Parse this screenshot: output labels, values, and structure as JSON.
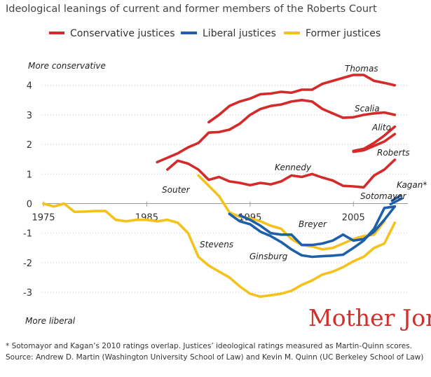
{
  "chart_data": {
    "type": "line",
    "title": "Ideological leanings of current and former members of the Roberts Court",
    "ylabel_top": "More conservative",
    "ylabel_bottom": "More liberal",
    "xlim": [
      1975,
      2010
    ],
    "ylim": [
      -3.4,
      4.6
    ],
    "y_ticks": [
      4,
      3,
      2,
      1,
      0,
      -1,
      -2,
      -3
    ],
    "y_tick_labels": [
      "4",
      "3",
      "2",
      "1",
      "0",
      "-1",
      "-2",
      "-3"
    ],
    "x_ticks": [
      1975,
      1985,
      1995,
      2005
    ],
    "x_tick_labels": [
      "1975",
      "1985",
      "1995",
      "2005"
    ],
    "grid": true,
    "legend": {
      "placement": "top",
      "entries": [
        {
          "label": "Conservative justices",
          "color": "#d42a2a"
        },
        {
          "label": "Liberal justices",
          "color": "#1d5fa8"
        },
        {
          "label": "Former justices",
          "color": "#f5c21b"
        }
      ]
    },
    "series": [
      {
        "name": "Thomas",
        "group": "Conservative justices",
        "color": "#d42a2a",
        "x": [
          1991,
          1992,
          1993,
          1994,
          1995,
          1996,
          1997,
          1998,
          1999,
          2000,
          2001,
          2002,
          2003,
          2004,
          2005,
          2006,
          2007,
          2008,
          2009
        ],
        "y": [
          2.75,
          3.0,
          3.3,
          3.45,
          3.55,
          3.7,
          3.72,
          3.78,
          3.75,
          3.85,
          3.85,
          4.05,
          4.15,
          4.25,
          4.35,
          4.35,
          4.15,
          4.08,
          4.0
        ]
      },
      {
        "name": "Scalia",
        "group": "Conservative justices",
        "color": "#d42a2a",
        "x": [
          1986,
          1987,
          1988,
          1989,
          1990,
          1991,
          1992,
          1993,
          1994,
          1995,
          1996,
          1997,
          1998,
          1999,
          2000,
          2001,
          2002,
          2003,
          2004,
          2005,
          2006,
          2007,
          2008,
          2009
        ],
        "y": [
          1.4,
          1.55,
          1.7,
          1.9,
          2.05,
          2.4,
          2.42,
          2.5,
          2.7,
          3.0,
          3.2,
          3.3,
          3.35,
          3.45,
          3.5,
          3.45,
          3.2,
          3.05,
          2.9,
          2.92,
          3.0,
          3.05,
          3.08,
          3.0
        ]
      },
      {
        "name": "Alito",
        "group": "Conservative justices",
        "color": "#d42a2a",
        "x": [
          2005,
          2006,
          2007,
          2008,
          2009
        ],
        "y": [
          1.78,
          1.85,
          2.05,
          2.3,
          2.6
        ]
      },
      {
        "name": "Roberts",
        "group": "Conservative justices",
        "color": "#d42a2a",
        "x": [
          2005,
          2006,
          2007,
          2008,
          2009
        ],
        "y": [
          1.75,
          1.8,
          1.95,
          2.1,
          2.35
        ]
      },
      {
        "name": "Kennedy",
        "group": "Conservative justices",
        "color": "#d42a2a",
        "x": [
          1987,
          1988,
          1989,
          1990,
          1991,
          1992,
          1993,
          1994,
          1995,
          1996,
          1997,
          1998,
          1999,
          2000,
          2001,
          2002,
          2003,
          2004,
          2005,
          2006,
          2007,
          2008,
          2009
        ],
        "y": [
          1.15,
          1.45,
          1.35,
          1.15,
          0.8,
          0.9,
          0.75,
          0.7,
          0.62,
          0.7,
          0.65,
          0.75,
          0.95,
          0.9,
          1.0,
          0.88,
          0.78,
          0.6,
          0.58,
          0.55,
          0.95,
          1.15,
          1.48
        ]
      },
      {
        "name": "Breyer",
        "group": "Liberal justices",
        "color": "#1d5fa8",
        "x": [
          1994,
          1995,
          1996,
          1997,
          1998,
          1999,
          2000,
          2001,
          2002,
          2003,
          2004,
          2005,
          2006,
          2007,
          2008,
          2009
        ],
        "y": [
          -0.4,
          -0.55,
          -0.75,
          -1.0,
          -1.05,
          -1.05,
          -1.4,
          -1.4,
          -1.35,
          -1.25,
          -1.05,
          -1.25,
          -1.2,
          -0.95,
          -0.55,
          -0.1
        ]
      },
      {
        "name": "Ginsburg",
        "group": "Liberal justices",
        "color": "#1d5fa8",
        "x": [
          1993,
          1994,
          1995,
          1996,
          1997,
          1998,
          1999,
          2000,
          2001,
          2002,
          2003,
          2004,
          2005,
          2006,
          2007,
          2008,
          2009
        ],
        "y": [
          -0.35,
          -0.6,
          -0.7,
          -0.95,
          -1.1,
          -1.3,
          -1.55,
          -1.75,
          -1.8,
          -1.78,
          -1.76,
          -1.73,
          -1.5,
          -1.25,
          -0.85,
          -0.15,
          -0.1
        ]
      },
      {
        "name": "Sotomayor",
        "group": "Liberal justices",
        "color": "#1d5fa8",
        "x": [
          2009
        ],
        "y": [
          0.05
        ]
      },
      {
        "name": "Kagan",
        "group": "Liberal justices",
        "color": "#1d5fa8",
        "x": [
          2009
        ],
        "y": [
          0.05
        ]
      },
      {
        "name": "Souter",
        "group": "Former justices",
        "color": "#f5c21b",
        "x": [
          1990,
          1991,
          1992,
          1993,
          1994,
          1995,
          1996,
          1997,
          1998,
          1999,
          2000,
          2001,
          2002,
          2003,
          2004,
          2005,
          2006,
          2007,
          2008
        ],
        "y": [
          0.95,
          0.6,
          0.25,
          -0.3,
          -0.45,
          -0.5,
          -0.6,
          -0.75,
          -0.85,
          -1.2,
          -1.4,
          -1.45,
          -1.55,
          -1.5,
          -1.35,
          -1.2,
          -1.1,
          -1.05,
          -0.6
        ]
      },
      {
        "name": "Stevens",
        "group": "Former justices",
        "color": "#f5c21b",
        "x": [
          1975,
          1976,
          1977,
          1978,
          1979,
          1980,
          1981,
          1982,
          1983,
          1984,
          1985,
          1986,
          1987,
          1988,
          1989,
          1990,
          1991,
          1992,
          1993,
          1994,
          1995,
          1996,
          1997,
          1998,
          1999,
          2000,
          2001,
          2002,
          2003,
          2004,
          2005,
          2006,
          2007,
          2008,
          2009
        ],
        "y": [
          0.0,
          -0.1,
          0.0,
          -0.28,
          -0.27,
          -0.25,
          -0.25,
          -0.55,
          -0.6,
          -0.55,
          -0.55,
          -0.6,
          -0.55,
          -0.65,
          -1.0,
          -1.8,
          -2.1,
          -2.3,
          -2.5,
          -2.8,
          -3.05,
          -3.15,
          -3.1,
          -3.05,
          -2.95,
          -2.75,
          -2.6,
          -2.4,
          -2.3,
          -2.15,
          -1.95,
          -1.8,
          -1.5,
          -1.35,
          -0.65
        ]
      }
    ],
    "annotations": [
      {
        "text": "Kagan*",
        "x": 2009.8,
        "y": 0.62
      },
      {
        "text": "Sotomayor",
        "x": 2002.3,
        "y": 0.2
      }
    ]
  },
  "brand": {
    "text": "Mother Jones",
    "color": "#d0302c"
  },
  "footnote": "* Sotomayor and Kagan’s 2010 ratings overlap. Justices’ ideological ratings measured as Martin-Quinn scores.",
  "source": "Source: Andrew D. Martin (Washington University School of Law) and Kevin M. Quinn (UC Berkeley School of Law)"
}
